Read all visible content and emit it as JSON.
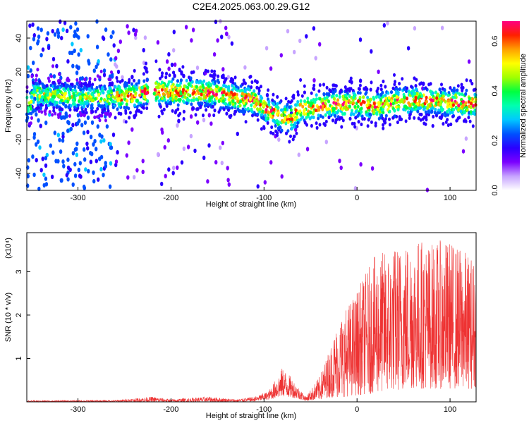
{
  "title": "C2E4.2025.063.00.29.G12",
  "chart_data": [
    {
      "type": "heatmap",
      "xlabel": "Height of straight line (km)",
      "ylabel": "Frequency (Hz)",
      "xlim": [
        -355,
        128
      ],
      "ylim": [
        -50,
        50
      ],
      "xticks": [
        -300,
        -200,
        -100,
        0,
        100
      ],
      "yticks": [
        -40,
        -20,
        0,
        20,
        40
      ],
      "colorbar": {
        "label": "Normalized spectral amplitude",
        "range": [
          0.0,
          0.68
        ],
        "ticks": [
          0.0,
          0.2,
          0.4,
          0.6
        ],
        "colormap": [
          "#ffffff",
          "#c7a4ff",
          "#7b00ff",
          "#2a00ff",
          "#0050ff",
          "#00c8ff",
          "#00ffb0",
          "#00ff40",
          "#a0ff00",
          "#ffff00",
          "#ffa000",
          "#ff2000",
          "#ff0080"
        ]
      },
      "ridge_center_hz": [
        {
          "x": -350,
          "y": 7
        },
        {
          "x": -330,
          "y": 6
        },
        {
          "x": -300,
          "y": 5
        },
        {
          "x": -260,
          "y": 5
        },
        {
          "x": -240,
          "y": 6
        },
        {
          "x": -220,
          "y": 9
        },
        {
          "x": -200,
          "y": 8
        },
        {
          "x": -160,
          "y": 8
        },
        {
          "x": -130,
          "y": 5
        },
        {
          "x": -110,
          "y": 3
        },
        {
          "x": -95,
          "y": -3
        },
        {
          "x": -80,
          "y": -7
        },
        {
          "x": -70,
          "y": -7
        },
        {
          "x": -60,
          "y": -2
        },
        {
          "x": -40,
          "y": 0
        },
        {
          "x": -20,
          "y": 1
        },
        {
          "x": 0,
          "y": 1
        },
        {
          "x": 20,
          "y": 0
        },
        {
          "x": 40,
          "y": 2
        },
        {
          "x": 60,
          "y": 3
        },
        {
          "x": 80,
          "y": 3
        },
        {
          "x": 100,
          "y": 2
        },
        {
          "x": 128,
          "y": 1
        }
      ]
    },
    {
      "type": "line",
      "xlabel": "Height of straight line (km)",
      "ylabel": "SNR (10 * v/v)",
      "multiplier": "(x10⁴)",
      "xlim": [
        -355,
        128
      ],
      "ylim": [
        0,
        3.9
      ],
      "xticks": [
        -300,
        -200,
        -100,
        0,
        100
      ],
      "yticks": [
        1,
        2,
        3
      ],
      "color": "#ee3333",
      "envelope": [
        {
          "x": -355,
          "min": 0.0,
          "max": 0.03
        },
        {
          "x": -260,
          "min": 0.0,
          "max": 0.04
        },
        {
          "x": -220,
          "min": 0.0,
          "max": 0.12
        },
        {
          "x": -200,
          "min": 0.0,
          "max": 0.06
        },
        {
          "x": -160,
          "min": 0.0,
          "max": 0.12
        },
        {
          "x": -130,
          "min": 0.0,
          "max": 0.06
        },
        {
          "x": -110,
          "min": 0.01,
          "max": 0.12
        },
        {
          "x": -95,
          "min": 0.05,
          "max": 0.25
        },
        {
          "x": -80,
          "min": 0.12,
          "max": 0.8
        },
        {
          "x": -70,
          "min": 0.1,
          "max": 0.55
        },
        {
          "x": -55,
          "min": 0.02,
          "max": 0.12
        },
        {
          "x": -40,
          "min": 0.05,
          "max": 0.6
        },
        {
          "x": -30,
          "min": 0.1,
          "max": 1.2
        },
        {
          "x": -20,
          "min": 0.1,
          "max": 1.9
        },
        {
          "x": 0,
          "min": 0.15,
          "max": 2.6
        },
        {
          "x": 20,
          "min": 0.2,
          "max": 3.4
        },
        {
          "x": 40,
          "min": 0.25,
          "max": 3.6
        },
        {
          "x": 60,
          "min": 0.3,
          "max": 3.85
        },
        {
          "x": 80,
          "min": 0.3,
          "max": 3.7
        },
        {
          "x": 100,
          "min": 0.3,
          "max": 3.75
        },
        {
          "x": 128,
          "min": 0.3,
          "max": 3.3
        }
      ]
    }
  ]
}
